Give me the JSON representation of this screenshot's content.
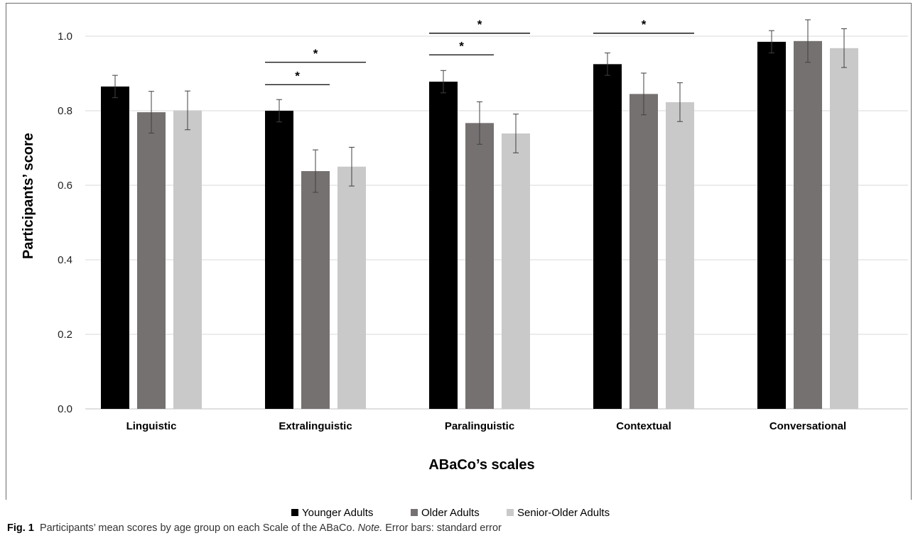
{
  "chart_data": {
    "type": "bar",
    "categories": [
      "Linguistic",
      "Extralinguistic",
      "Paralinguistic",
      "Contextual",
      "Conversational"
    ],
    "series": [
      {
        "name": "Younger Adults",
        "color": "#000000",
        "values": [
          0.865,
          0.8,
          0.878,
          0.925,
          0.985
        ],
        "errors": [
          0.03,
          0.03,
          0.03,
          0.03,
          0.03
        ]
      },
      {
        "name": "Older Adults",
        "color": "#767171",
        "values": [
          0.796,
          0.638,
          0.767,
          0.845,
          0.987
        ],
        "errors": [
          0.056,
          0.057,
          0.057,
          0.056,
          0.057
        ]
      },
      {
        "name": "Senior-Older Adults",
        "color": "#c9c9c9",
        "values": [
          0.801,
          0.65,
          0.739,
          0.823,
          0.968
        ],
        "errors": [
          0.052,
          0.052,
          0.052,
          0.052,
          0.052
        ]
      }
    ],
    "xlabel": "ABaCo’s scales",
    "ylabel": "Participants’ score",
    "ylim": [
      0,
      1.0
    ],
    "yticks": [
      "0.0",
      "0.2",
      "0.4",
      "0.6",
      "0.8",
      "1.0"
    ],
    "grid": true,
    "legend_position": "bottom",
    "significance": [
      {
        "category": 1,
        "from": 0,
        "to": 1,
        "height": 0.87,
        "label": "*"
      },
      {
        "category": 1,
        "from": 0,
        "to": 2,
        "height": 0.93,
        "label": "*"
      },
      {
        "category": 2,
        "from": 0,
        "to": 1,
        "height": 0.95,
        "label": "*"
      },
      {
        "category": 2,
        "from": 0,
        "to": 2,
        "height": 1.008,
        "label": "*"
      },
      {
        "category": 3,
        "from": 0,
        "to": 2,
        "height": 1.008,
        "label": "*"
      }
    ]
  },
  "caption": {
    "fig_label": "Fig. 1",
    "text": "Participants’ mean scores by age group on each Scale of the ABaCo.",
    "note_label": "Note.",
    "note_text": "Error bars: standard error"
  }
}
